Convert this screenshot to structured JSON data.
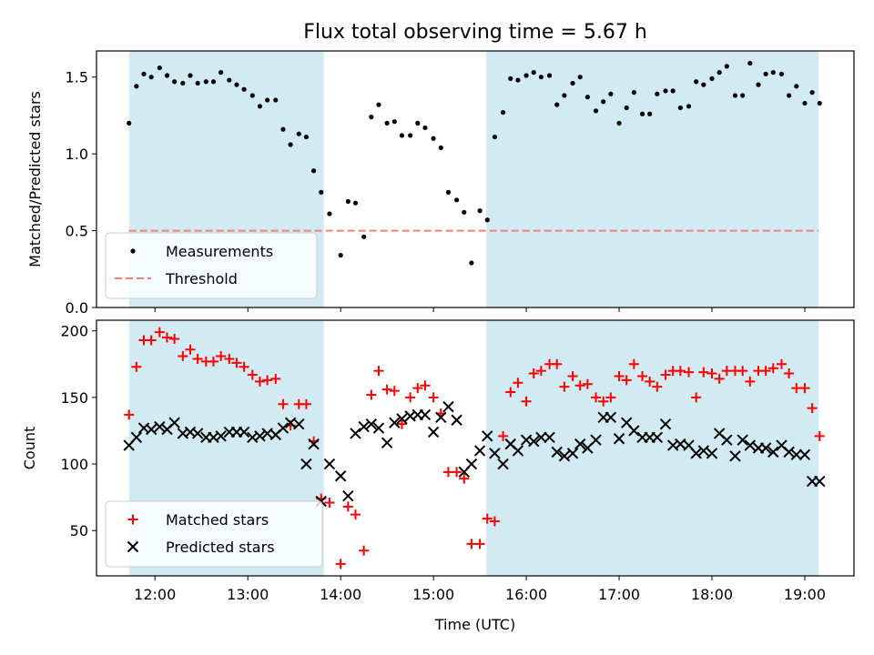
{
  "chart_data": [
    {
      "type": "scatter",
      "title": "Flux total observing time = 5.67 h",
      "xlabel": "",
      "ylabel": "Matched/Predicted stars",
      "xlim": [
        11.37,
        19.53
      ],
      "ylim": [
        0.0,
        1.67
      ],
      "yticks": [
        0.0,
        0.5,
        1.0,
        1.5
      ],
      "ytick_labels": [
        "0.0",
        "0.5",
        "1.0",
        "1.5"
      ],
      "xticks": [
        12,
        13,
        14,
        15,
        16,
        17,
        18,
        19
      ],
      "shaded_regions": [
        [
          11.72,
          13.82
        ],
        [
          15.57,
          19.15
        ]
      ],
      "shade_color": "#add8e6",
      "threshold": {
        "name": "Threshold",
        "value": 0.5,
        "color": "#f08080",
        "style": "dashed"
      },
      "legend": {
        "location": "lower-left",
        "entries": [
          "Measurements",
          "Threshold"
        ]
      },
      "series": [
        {
          "name": "Measurements",
          "marker": "dot",
          "color": "#000000",
          "x": [
            11.72,
            11.8,
            11.88,
            11.96,
            12.05,
            12.13,
            12.21,
            12.3,
            12.38,
            12.46,
            12.55,
            12.63,
            12.71,
            12.8,
            12.88,
            12.96,
            13.05,
            13.13,
            13.21,
            13.3,
            13.38,
            13.46,
            13.55,
            13.63,
            13.71,
            13.79,
            13.88,
            14.0,
            14.08,
            14.16,
            14.25,
            14.33,
            14.41,
            14.5,
            14.58,
            14.66,
            14.75,
            14.83,
            14.91,
            15.0,
            15.08,
            15.16,
            15.25,
            15.33,
            15.41,
            15.5,
            15.58,
            15.66,
            15.75,
            15.83,
            15.91,
            16.0,
            16.08,
            16.16,
            16.25,
            16.33,
            16.41,
            16.5,
            16.58,
            16.66,
            16.75,
            16.83,
            16.91,
            17.0,
            17.08,
            17.16,
            17.25,
            17.33,
            17.41,
            17.5,
            17.58,
            17.66,
            17.75,
            17.83,
            17.91,
            18.0,
            18.08,
            18.16,
            18.25,
            18.33,
            18.41,
            18.5,
            18.58,
            18.66,
            18.75,
            18.83,
            18.91,
            19.0,
            19.08,
            19.16
          ],
          "y": [
            1.2,
            1.44,
            1.52,
            1.5,
            1.56,
            1.51,
            1.47,
            1.46,
            1.51,
            1.46,
            1.47,
            1.47,
            1.53,
            1.48,
            1.45,
            1.42,
            1.38,
            1.31,
            1.35,
            1.35,
            1.16,
            1.06,
            1.13,
            1.11,
            0.89,
            0.75,
            0.61,
            0.34,
            0.69,
            0.68,
            0.46,
            1.24,
            1.32,
            1.2,
            1.21,
            1.12,
            1.12,
            1.2,
            1.17,
            1.1,
            1.04,
            0.75,
            0.7,
            0.62,
            0.29,
            0.63,
            0.57,
            1.11,
            1.27,
            1.49,
            1.48,
            1.51,
            1.53,
            1.5,
            1.51,
            1.32,
            1.38,
            1.46,
            1.5,
            1.37,
            1.28,
            1.34,
            1.39,
            1.2,
            1.3,
            1.4,
            1.26,
            1.26,
            1.39,
            1.41,
            1.41,
            1.3,
            1.31,
            1.47,
            1.45,
            1.49,
            1.53,
            1.57,
            1.38,
            1.38,
            1.59,
            1.45,
            1.52,
            1.53,
            1.52,
            1.38,
            1.44,
            1.33,
            1.4,
            1.33
          ]
        }
      ]
    },
    {
      "type": "scatter",
      "title": "",
      "xlabel": "Time (UTC)",
      "ylabel": "Count",
      "xlim": [
        11.37,
        19.53
      ],
      "ylim": [
        16,
        208
      ],
      "yticks": [
        50,
        100,
        150,
        200
      ],
      "ytick_labels": [
        "50",
        "100",
        "150",
        "200"
      ],
      "xticks": [
        12,
        13,
        14,
        15,
        16,
        17,
        18,
        19
      ],
      "xtick_labels": [
        "12:00",
        "13:00",
        "14:00",
        "15:00",
        "16:00",
        "17:00",
        "18:00",
        "19:00"
      ],
      "shaded_regions": [
        [
          11.72,
          13.82
        ],
        [
          15.57,
          19.15
        ]
      ],
      "shade_color": "#add8e6",
      "legend": {
        "location": "lower-left",
        "entries": [
          "Matched stars",
          "Predicted stars"
        ]
      },
      "series": [
        {
          "name": "Matched stars",
          "marker": "plus",
          "color": "#ff0000",
          "x": [
            11.72,
            11.8,
            11.88,
            11.96,
            12.05,
            12.13,
            12.21,
            12.3,
            12.38,
            12.46,
            12.55,
            12.63,
            12.71,
            12.8,
            12.88,
            12.96,
            13.05,
            13.13,
            13.21,
            13.3,
            13.38,
            13.46,
            13.55,
            13.63,
            13.71,
            13.79,
            13.88,
            14.0,
            14.08,
            14.16,
            14.25,
            14.33,
            14.41,
            14.5,
            14.58,
            14.66,
            14.75,
            14.83,
            14.91,
            15.0,
            15.08,
            15.16,
            15.25,
            15.33,
            15.41,
            15.5,
            15.58,
            15.66,
            15.75,
            15.83,
            15.91,
            16.0,
            16.08,
            16.16,
            16.25,
            16.33,
            16.41,
            16.5,
            16.58,
            16.66,
            16.75,
            16.83,
            16.91,
            17.0,
            17.08,
            17.16,
            17.25,
            17.33,
            17.41,
            17.5,
            17.58,
            17.66,
            17.75,
            17.83,
            17.91,
            18.0,
            18.08,
            18.16,
            18.25,
            18.33,
            18.41,
            18.5,
            18.58,
            18.66,
            18.75,
            18.83,
            18.91,
            19.0,
            19.08,
            19.16
          ],
          "y": [
            137,
            173,
            193,
            193,
            199,
            195,
            194,
            181,
            186,
            179,
            177,
            177,
            181,
            179,
            176,
            173,
            167,
            162,
            163,
            164,
            145,
            129,
            145,
            145,
            117,
            74,
            71,
            25,
            68,
            62,
            35,
            152,
            170,
            156,
            155,
            130,
            150,
            157,
            159,
            150,
            138,
            94,
            94,
            89,
            40,
            40,
            59,
            57,
            121,
            154,
            161,
            147,
            168,
            170,
            175,
            175,
            158,
            166,
            159,
            160,
            150,
            147,
            150,
            166,
            163,
            175,
            166,
            162,
            158,
            167,
            170,
            170,
            169,
            150,
            169,
            168,
            164,
            170,
            170,
            170,
            162,
            170,
            170,
            172,
            175,
            168,
            157,
            157,
            142,
            121
          ],
          "y_continued_note": ""
        },
        {
          "name": "Predicted stars",
          "marker": "x",
          "color": "#000000",
          "x": [
            11.72,
            11.8,
            11.88,
            11.96,
            12.05,
            12.13,
            12.21,
            12.3,
            12.38,
            12.46,
            12.55,
            12.63,
            12.71,
            12.8,
            12.88,
            12.96,
            13.05,
            13.13,
            13.21,
            13.3,
            13.38,
            13.46,
            13.55,
            13.63,
            13.71,
            13.79,
            13.88,
            14.0,
            14.08,
            14.16,
            14.25,
            14.33,
            14.41,
            14.5,
            14.58,
            14.66,
            14.75,
            14.83,
            14.91,
            15.0,
            15.08,
            15.16,
            15.25,
            15.33,
            15.41,
            15.5,
            15.58,
            15.66,
            15.75,
            15.83,
            15.91,
            16.0,
            16.08,
            16.16,
            16.25,
            16.33,
            16.41,
            16.5,
            16.58,
            16.66,
            16.75,
            16.83,
            16.91,
            17.0,
            17.08,
            17.16,
            17.25,
            17.33,
            17.41,
            17.5,
            17.58,
            17.66,
            17.75,
            17.83,
            17.91,
            18.0,
            18.08,
            18.16,
            18.25,
            18.33,
            18.41,
            18.5,
            18.58,
            18.66,
            18.75,
            18.83,
            18.91,
            19.0,
            19.08,
            19.16
          ],
          "y": [
            114,
            120,
            127,
            126,
            128,
            126,
            131,
            123,
            124,
            123,
            120,
            120,
            121,
            124,
            124,
            124,
            120,
            121,
            123,
            122,
            127,
            131,
            130,
            100,
            115,
            72,
            100,
            91,
            76,
            123,
            128,
            130,
            127,
            116,
            131,
            134,
            136,
            137,
            137,
            124,
            135,
            143,
            133,
            94,
            100,
            110,
            121,
            108,
            100,
            115,
            110,
            118,
            117,
            120,
            120,
            109,
            106,
            108,
            115,
            112,
            118,
            135,
            135,
            119,
            131,
            125,
            120,
            120,
            120,
            130,
            114,
            115,
            114,
            108,
            110,
            108,
            123,
            118,
            106,
            118,
            114,
            112,
            112,
            109,
            114,
            109,
            107,
            107,
            87,
            87
          ]
        }
      ]
    }
  ]
}
